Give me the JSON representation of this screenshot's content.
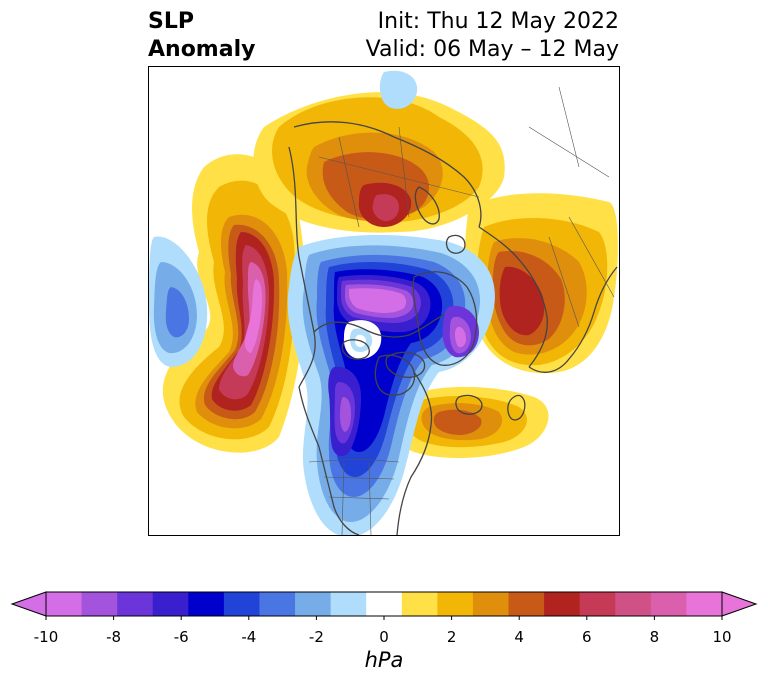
{
  "title": {
    "left_line1": "SLP",
    "left_line2": "Anomaly",
    "right_line1": "Init: Thu 12 May 2022",
    "right_line2": "Valid: 06 May – 12 May"
  },
  "map": {
    "projection": "north-polar-stereographic",
    "variable": "sea level pressure anomaly",
    "coastline_color": "#444444"
  },
  "colorbar": {
    "label": "hPa",
    "extend": "both",
    "levels": [
      -10,
      -9,
      -8,
      -7,
      -6,
      -5,
      -4,
      -3,
      -2,
      -1,
      1,
      2,
      3,
      4,
      5,
      6,
      7,
      8,
      9,
      10
    ],
    "tick_labels": [
      "-10",
      "-8",
      "-6",
      "-4",
      "-2",
      "0",
      "2",
      "4",
      "6",
      "8",
      "10"
    ],
    "colors": [
      "#d36ee6",
      "#a453dd",
      "#6c35d9",
      "#3a1fcf",
      "#0000cd",
      "#2243d8",
      "#4a76e3",
      "#76ade9",
      "#b0ddfb",
      "#ffffff",
      "#ffe147",
      "#f2b706",
      "#e08f0c",
      "#c75a17",
      "#b0231f",
      "#c43a57",
      "#cf5186",
      "#da60ad",
      "#e874d9"
    ],
    "under_color": "#d36ee6",
    "over_color": "#e874d9"
  }
}
